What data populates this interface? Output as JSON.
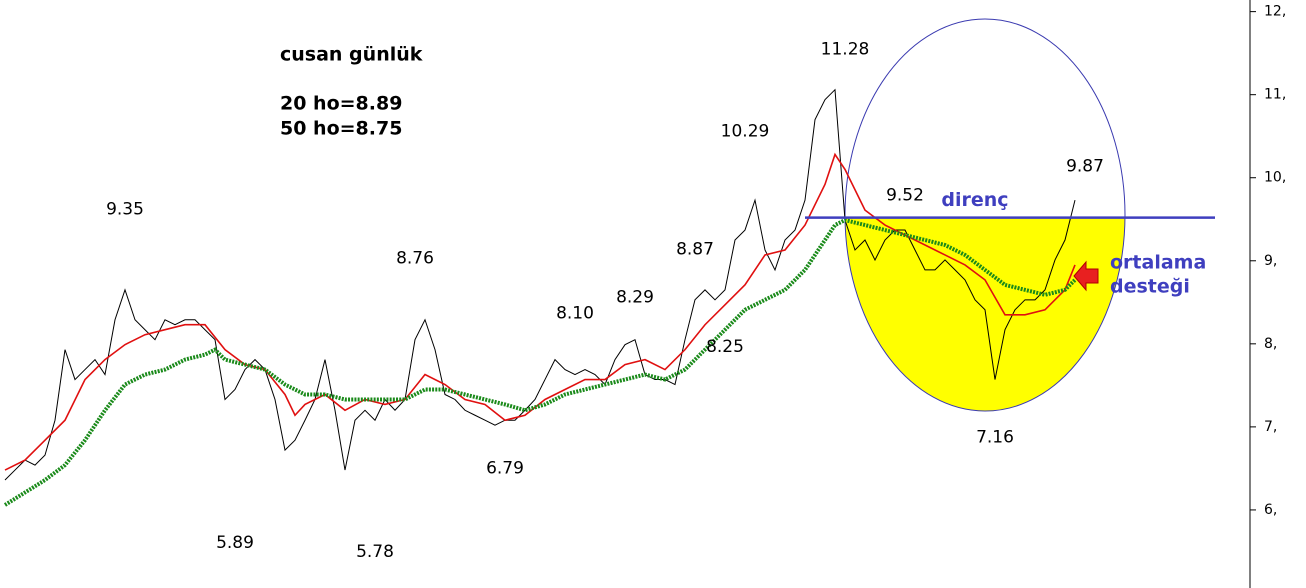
{
  "chart_data": {
    "type": "line",
    "title": "cusan günlük",
    "notes": [
      "20 ho=8.89",
      "50 ho=8.75"
    ],
    "xlim": [
      0,
      125
    ],
    "ylim": [
      5.06,
      12.14
    ],
    "yticks": [
      {
        "value": 12,
        "label": "12,"
      },
      {
        "value": 11,
        "label": "11,"
      },
      {
        "value": 10,
        "label": "10,"
      },
      {
        "value": 9,
        "label": "9,"
      },
      {
        "value": 8,
        "label": "8,"
      },
      {
        "value": 7,
        "label": "7,"
      },
      {
        "value": 6,
        "label": "6,"
      }
    ],
    "series": [
      {
        "color": "#000000",
        "style": "solid",
        "x": [
          0,
          1,
          2,
          3,
          4,
          5,
          6,
          7,
          8,
          9,
          10,
          11,
          12,
          13,
          14,
          15,
          16,
          17,
          18,
          19,
          20,
          21,
          22,
          23,
          24,
          25,
          26,
          27,
          28,
          29,
          30,
          31,
          32,
          33,
          34,
          35,
          36,
          37,
          38,
          39,
          40,
          41,
          42,
          43,
          44,
          45,
          46,
          47,
          48,
          49,
          50,
          51,
          52,
          53,
          54,
          55,
          56,
          57,
          58,
          59,
          60,
          61,
          62,
          63,
          64,
          65,
          66,
          67,
          68,
          69,
          70,
          71,
          72,
          73,
          74,
          75,
          76,
          77,
          78,
          79,
          80,
          81,
          82,
          83,
          84,
          85,
          86,
          87,
          88,
          89,
          90,
          91,
          92,
          93,
          94,
          95,
          96,
          97,
          98,
          99,
          100,
          101,
          102,
          103,
          104,
          105,
          106,
          107
        ],
        "values": [
          6.36,
          6.48,
          6.6,
          6.54,
          6.66,
          7.08,
          7.93,
          7.57,
          7.69,
          7.81,
          7.63,
          8.29,
          8.65,
          8.29,
          8.17,
          8.05,
          8.29,
          8.23,
          8.29,
          8.29,
          8.17,
          8.05,
          7.33,
          7.45,
          7.69,
          7.81,
          7.69,
          7.33,
          6.72,
          6.84,
          7.08,
          7.33,
          7.81,
          7.2,
          6.48,
          7.08,
          7.2,
          7.08,
          7.33,
          7.2,
          7.33,
          8.05,
          8.29,
          7.93,
          7.39,
          7.33,
          7.2,
          7.14,
          7.08,
          7.02,
          7.08,
          7.08,
          7.2,
          7.33,
          7.57,
          7.81,
          7.69,
          7.63,
          7.69,
          7.63,
          7.51,
          7.81,
          7.99,
          8.05,
          7.63,
          7.57,
          7.57,
          7.51,
          8.05,
          8.53,
          8.65,
          8.53,
          8.65,
          9.25,
          9.37,
          9.73,
          9.13,
          8.89,
          9.25,
          9.37,
          9.73,
          10.7,
          10.94,
          11.06,
          9.49,
          9.13,
          9.25,
          9.01,
          9.25,
          9.37,
          9.37,
          9.13,
          8.89,
          8.89,
          9.01,
          8.89,
          8.77,
          8.53,
          8.41,
          7.57,
          8.17,
          8.41,
          8.53,
          8.53,
          8.65,
          9.01,
          9.25,
          9.73
        ]
      },
      {
        "color": "#e01010",
        "style": "solid",
        "x": [
          0,
          2,
          4,
          6,
          8,
          10,
          12,
          14,
          16,
          18,
          20,
          22,
          24,
          26,
          28,
          29,
          30,
          32,
          34,
          36,
          38,
          40,
          42,
          44,
          46,
          48,
          50,
          52,
          54,
          56,
          58,
          60,
          62,
          64,
          66,
          68,
          70,
          72,
          74,
          76,
          78,
          80,
          82,
          83,
          84,
          86,
          88,
          90,
          92,
          94,
          96,
          98,
          100,
          102,
          104,
          106,
          107
        ],
        "values": [
          6.48,
          6.6,
          6.84,
          7.08,
          7.57,
          7.81,
          7.99,
          8.11,
          8.17,
          8.23,
          8.23,
          7.93,
          7.75,
          7.69,
          7.39,
          7.14,
          7.27,
          7.39,
          7.2,
          7.33,
          7.27,
          7.33,
          7.63,
          7.51,
          7.33,
          7.27,
          7.08,
          7.14,
          7.33,
          7.45,
          7.57,
          7.57,
          7.75,
          7.81,
          7.69,
          7.93,
          8.23,
          8.47,
          8.71,
          9.07,
          9.13,
          9.43,
          9.92,
          10.28,
          10.1,
          9.61,
          9.43,
          9.31,
          9.19,
          9.07,
          8.95,
          8.77,
          8.35,
          8.35,
          8.41,
          8.65,
          8.95
        ]
      },
      {
        "color": "#1a8a1a",
        "style": "dotted",
        "x": [
          0,
          4,
          6,
          8,
          10,
          12,
          14,
          16,
          18,
          20,
          21,
          22,
          24,
          26,
          28,
          30,
          32,
          34,
          36,
          38,
          40,
          42,
          44,
          46,
          48,
          50,
          52,
          54,
          56,
          58,
          60,
          62,
          64,
          66,
          68,
          70,
          72,
          74,
          76,
          78,
          80,
          82,
          83,
          84,
          86,
          88,
          90,
          92,
          94,
          96,
          98,
          100,
          102,
          104,
          106,
          107
        ],
        "values": [
          6.06,
          6.36,
          6.54,
          6.84,
          7.2,
          7.51,
          7.63,
          7.69,
          7.81,
          7.87,
          7.93,
          7.81,
          7.75,
          7.69,
          7.51,
          7.39,
          7.39,
          7.33,
          7.33,
          7.33,
          7.33,
          7.45,
          7.45,
          7.39,
          7.33,
          7.27,
          7.2,
          7.27,
          7.39,
          7.45,
          7.51,
          7.57,
          7.63,
          7.57,
          7.69,
          7.93,
          8.17,
          8.41,
          8.53,
          8.65,
          8.89,
          9.25,
          9.43,
          9.49,
          9.43,
          9.37,
          9.31,
          9.25,
          9.19,
          9.07,
          8.89,
          8.71,
          8.65,
          8.59,
          8.65,
          8.77
        ]
      }
    ],
    "annotations": [
      {
        "x": 12,
        "value": 9.35,
        "label": "9.35",
        "position": "above"
      },
      {
        "x": 23,
        "value": 5.89,
        "label": "5.89",
        "position": "below"
      },
      {
        "x": 37,
        "value": 5.78,
        "label": "5.78",
        "position": "below"
      },
      {
        "x": 41,
        "value": 8.76,
        "label": "8.76",
        "position": "above"
      },
      {
        "x": 50,
        "value": 6.79,
        "label": "6.79",
        "position": "below"
      },
      {
        "x": 57,
        "value": 8.1,
        "label": "8.10",
        "position": "above"
      },
      {
        "x": 63,
        "value": 8.29,
        "label": "8.29",
        "position": "above"
      },
      {
        "x": 69,
        "value": 8.87,
        "label": "8.87",
        "position": "above"
      },
      {
        "x": 72,
        "value": 8.25,
        "label": "8.25",
        "position": "below"
      },
      {
        "x": 74,
        "value": 10.29,
        "label": "10.29",
        "position": "above"
      },
      {
        "x": 84,
        "value": 11.28,
        "label": "11.28",
        "position": "above"
      },
      {
        "x": 90,
        "value": 9.52,
        "label": "9.52",
        "position": "above"
      },
      {
        "x": 108,
        "value": 9.87,
        "label": "9.87",
        "position": "above"
      },
      {
        "x": 99,
        "value": 7.16,
        "label": "7.16",
        "position": "below"
      }
    ],
    "resistance": {
      "label": "direnç",
      "value": 9.52,
      "x": [
        80,
        121
      ],
      "color": "#3f3fbf"
    },
    "support_note": [
      "ortalama",
      "desteği"
    ]
  }
}
